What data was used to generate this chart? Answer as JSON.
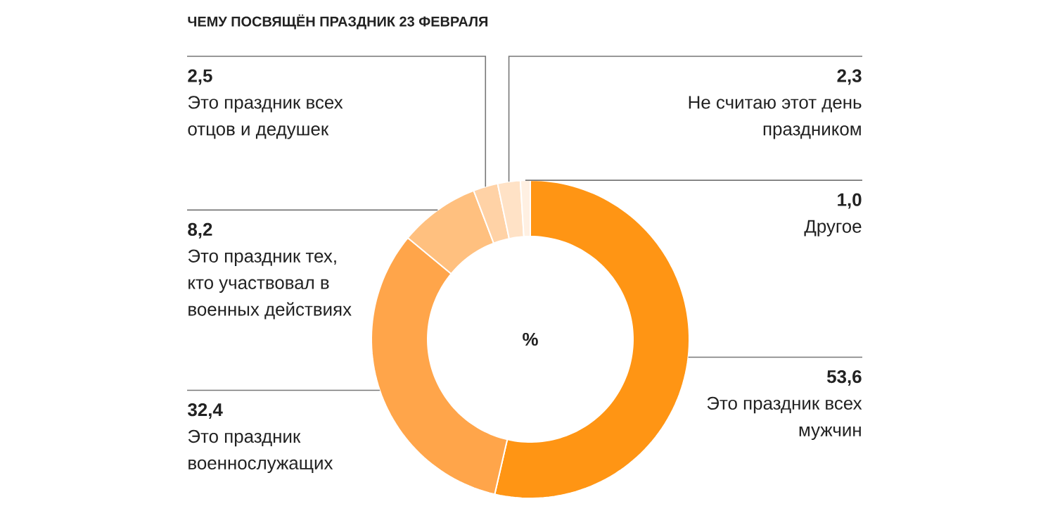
{
  "chart_data": {
    "type": "donut",
    "title": "ЧЕМУ ПОСВЯЩЁН ПРАЗДНИК 23 ФЕВРАЛЯ",
    "categories": [
      "Это праздник всех мужчин",
      "Это праздник военнослужащих",
      "Это праздник тех, кто участвовал в военных действиях",
      "Это праздник всех отцов и дедушек",
      "Не считаю этот день праздником",
      "Другое"
    ],
    "values": [
      53.6,
      32.4,
      8.2,
      2.5,
      2.3,
      1.0
    ],
    "value_labels": [
      "53,6",
      "32,4",
      "8,2",
      "2,5",
      "2,3",
      "1,0"
    ],
    "colors": [
      "#ff9514",
      "#ffa54a",
      "#ffc07f",
      "#ffd2a6",
      "#ffe2c6",
      "#fff0e2"
    ],
    "annotations": [
      "%"
    ]
  }
}
